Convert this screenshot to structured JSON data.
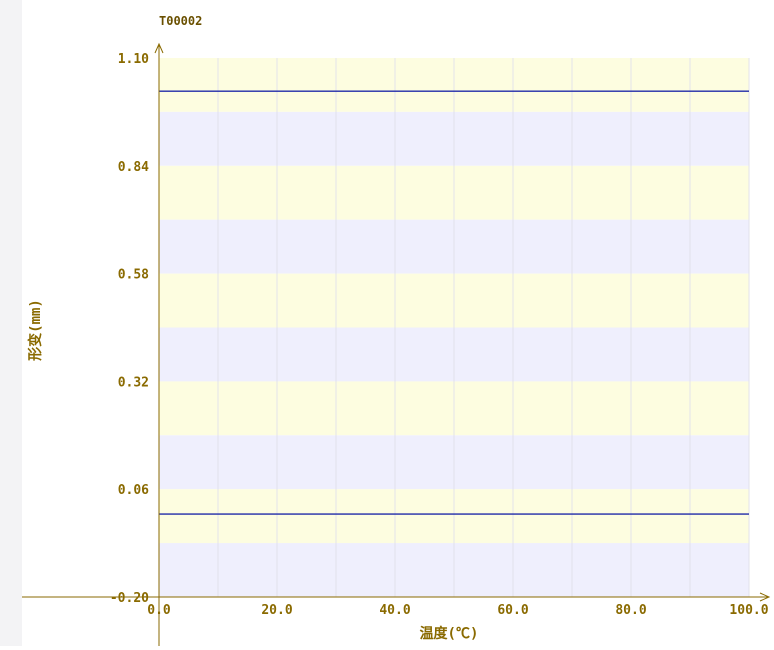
{
  "chart_data": {
    "type": "line",
    "title": "T00002",
    "xlabel": "温度(℃)",
    "ylabel": "形变(mm)",
    "xlim": [
      0.0,
      100.0
    ],
    "ylim": [
      -0.2,
      1.1
    ],
    "x_ticks": [
      "0.0",
      "20.0",
      "40.0",
      "60.0",
      "80.0",
      "100.0"
    ],
    "y_ticks": [
      "-0.20",
      "0.06",
      "0.32",
      "0.58",
      "0.84",
      "1.10"
    ],
    "series": [
      {
        "x": [
          0.0,
          100.0
        ],
        "y": [
          1.02,
          1.02
        ],
        "color": "#1f2aa8"
      },
      {
        "x": [
          0.0,
          100.0
        ],
        "y": [
          0.0,
          0.0
        ],
        "color": "#1f2aa8"
      }
    ],
    "colors": {
      "band_yellow": "#fdfde0",
      "band_lavender": "#efeffd",
      "axis_text": "#8a6a00",
      "axis_line": "#8a6a00",
      "gridline": "#e2e2ea"
    },
    "grid": true
  }
}
